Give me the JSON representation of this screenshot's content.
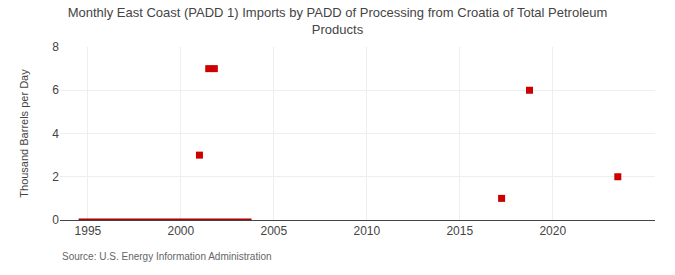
{
  "chart_data": {
    "type": "scatter",
    "title": "Monthly East Coast (PADD 1) Imports by PADD of Processing from Croatia of Total Petroleum\nProducts",
    "ylabel": "Thousand Barrels per Day",
    "annotations": [
      "Source: U.S. Energy Information Administration"
    ],
    "series": [
      {
        "type": "line",
        "line_style": "solid",
        "color": "#aa0000",
        "x": [
          1994.5,
          2003.8
        ],
        "values": [
          0.0,
          0.0
        ]
      },
      {
        "type": "scatter",
        "marker": "square",
        "color": "#cc0000",
        "x": [
          2001.0,
          2001.5,
          2001.8,
          2017.25,
          2018.75,
          2023.5
        ],
        "values": [
          3.0,
          7.0,
          7.0,
          1.0,
          6.0,
          2.0
        ]
      }
    ],
    "xlim": [
      1993.5,
      2025.5
    ],
    "ylim": [
      0,
      8
    ],
    "xticks": [
      1995,
      2000,
      2005,
      2010,
      2015,
      2020
    ],
    "yticks": [
      0,
      2,
      4,
      6,
      8
    ],
    "grid": true
  }
}
